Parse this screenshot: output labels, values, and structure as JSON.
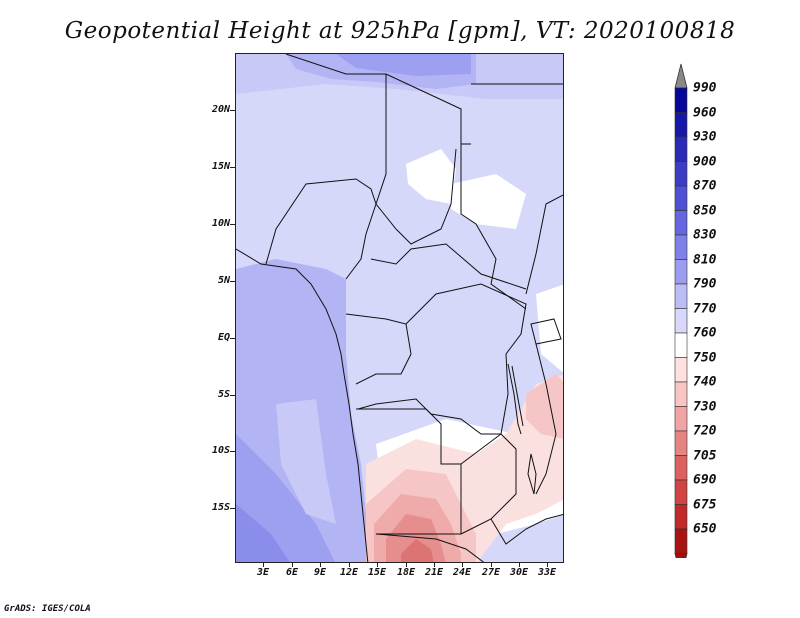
{
  "title": "Geopotential Height at 925hPa [gpm], VT: 2020100818",
  "credit": "GrADS: IGES/COLA",
  "axes": {
    "lat_labels": [
      "20N",
      "15N",
      "10N",
      "5N",
      "EQ",
      "5S",
      "10S",
      "15S"
    ],
    "lon_labels": [
      "3E",
      "6E",
      "9E",
      "12E",
      "15E",
      "18E",
      "21E",
      "24E",
      "27E",
      "30E",
      "33E"
    ]
  },
  "colorbar": {
    "levels": [
      "990",
      "960",
      "930",
      "900",
      "870",
      "850",
      "830",
      "810",
      "790",
      "770",
      "760",
      "750",
      "740",
      "730",
      "720",
      "705",
      "690",
      "675",
      "650"
    ],
    "colors": [
      "#06069a",
      "#1818a8",
      "#2a2ab6",
      "#3c3cc4",
      "#5050d4",
      "#6666e0",
      "#8080ea",
      "#9c9cf0",
      "#bcbcf6",
      "#d8d8fa",
      "#ffffff",
      "#fde0e0",
      "#f8c4c4",
      "#f0a4a4",
      "#e68484",
      "#dc6262",
      "#d04444",
      "#c02a2a",
      "#a81414"
    ],
    "over_color": "#888888",
    "under_color": "#a01010"
  },
  "field_colors": {
    "bg": "#d6d8fa",
    "lavender": "#c8c9f7",
    "mid": "#b2b4f3",
    "deep": "#9d9ff0",
    "deepest": "#8b8deb",
    "white": "#ffffff",
    "pink1": "#fbe0e0",
    "pink2": "#f6c6c6",
    "pink3": "#efaaaa",
    "pink4": "#e68e8e",
    "pink5": "#dc7474"
  }
}
